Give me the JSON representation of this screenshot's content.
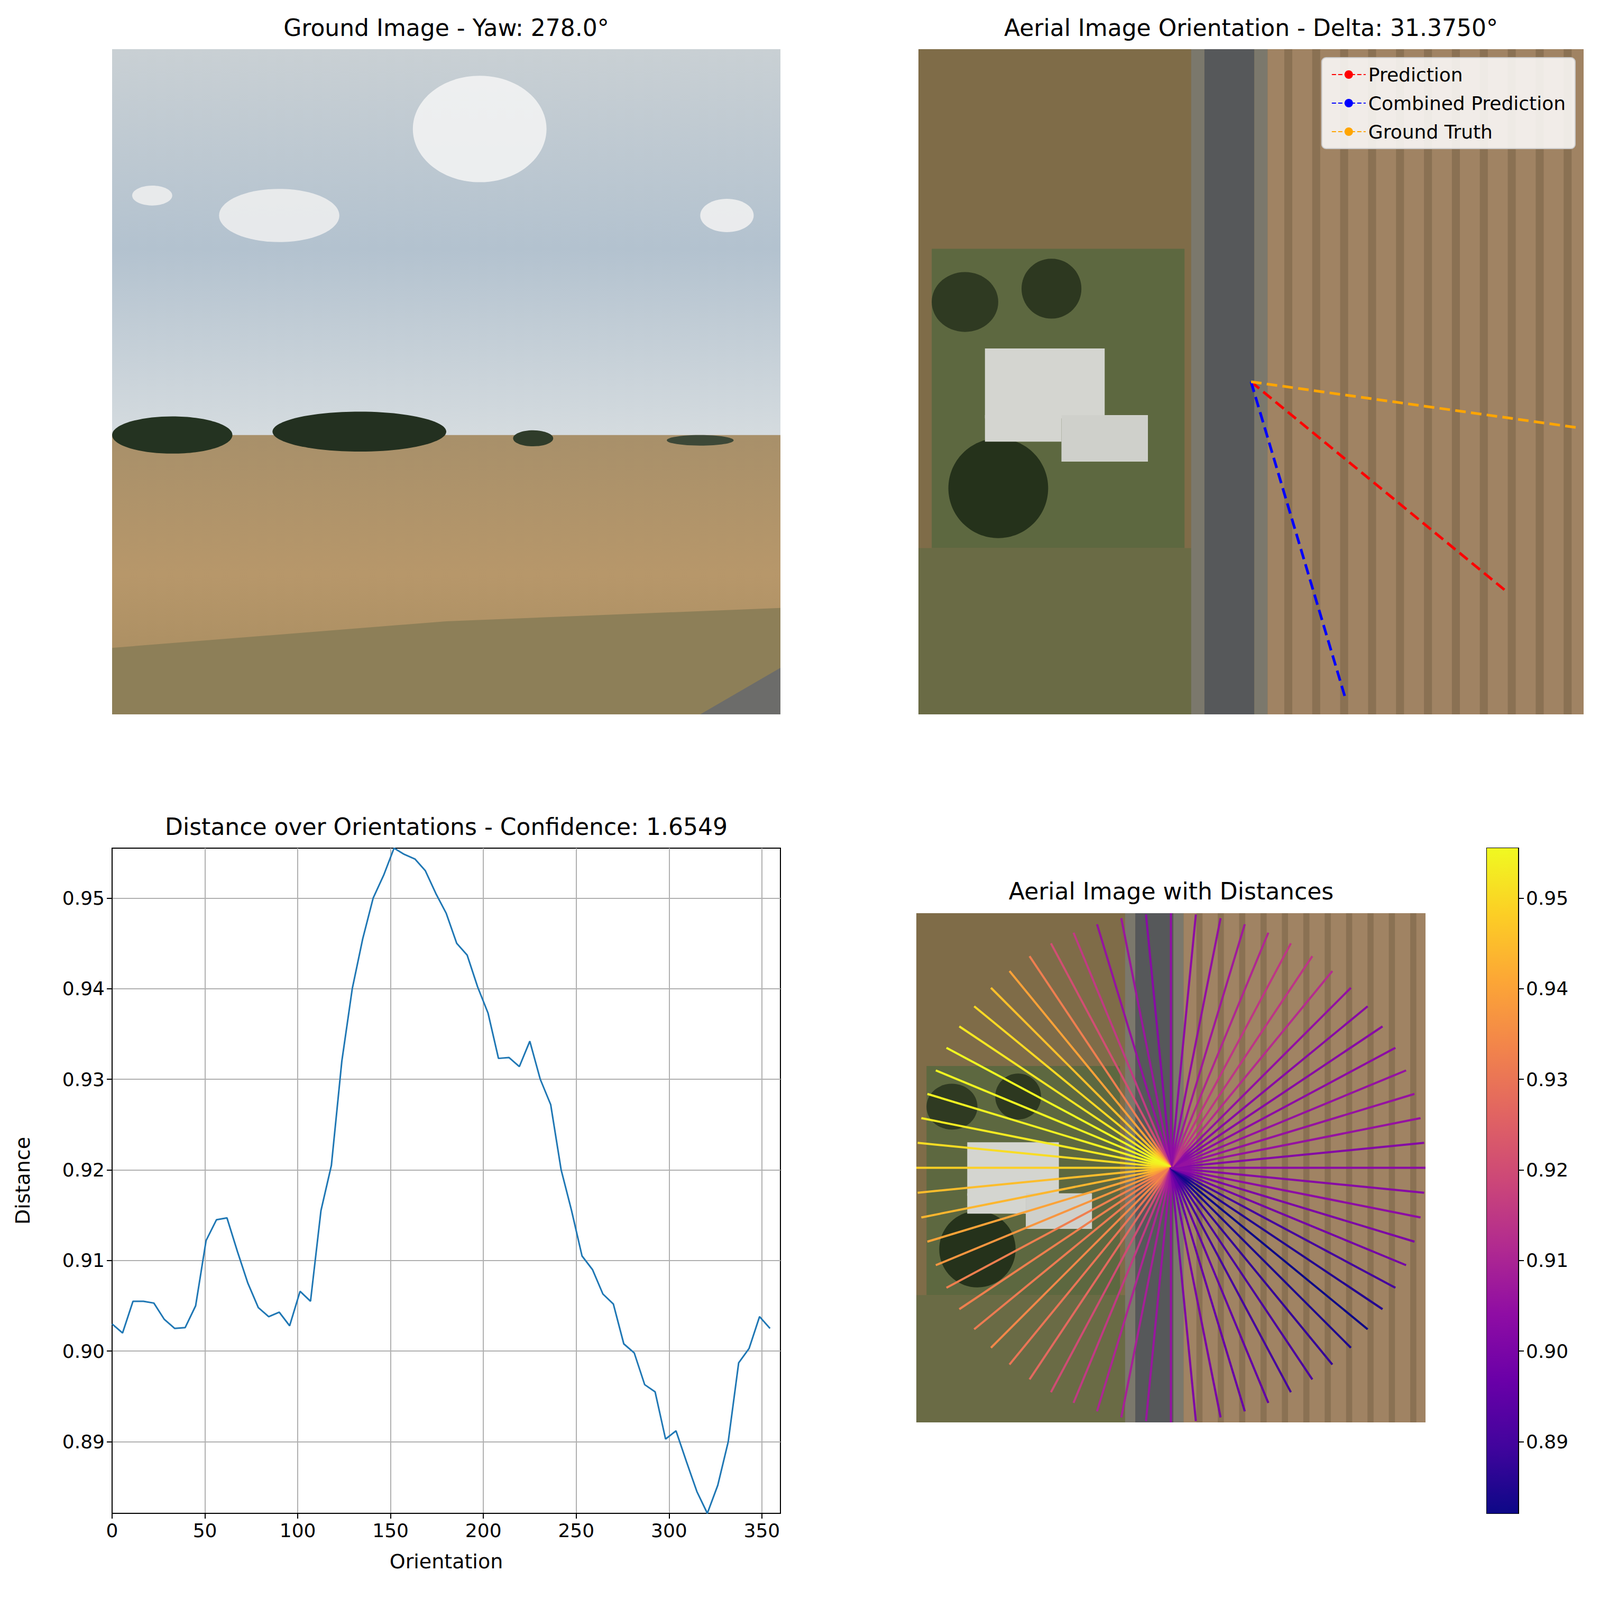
{
  "chart_data": [
    {
      "type": "image",
      "title": "Ground Image - Yaw: 278.0°"
    },
    {
      "type": "polar_line",
      "title": "Aerial Image Orientation - Delta: 31.3750°",
      "legend": "upper right",
      "tick_labels": false,
      "rlim": [
        0,
        1
      ],
      "thetalim": [
        0,
        360
      ],
      "series": [
        {
          "name": "Prediction",
          "color": "#ff0000",
          "line_style": "dashed",
          "r": [
            0,
            1
          ],
          "theta": 320.625
        },
        {
          "name": "Combined Prediction",
          "color": "#0000ff",
          "line_style": "dashed",
          "r": [
            0,
            1
          ],
          "theta": 286.6
        },
        {
          "name": "Ground Truth",
          "color": "#ffa500",
          "line_style": "dashed",
          "r": [
            0,
            1
          ],
          "theta": 352.0
        }
      ]
    },
    {
      "type": "line",
      "title": "Distance over Orientations - Confidence: 1.6549",
      "x_label": "Orientation",
      "y_label": "Distance",
      "color": "#1f77b4",
      "grid": true,
      "x": [
        0,
        5.625,
        11.25,
        16.875,
        22.5,
        28.125,
        33.75,
        39.375,
        45,
        50.625,
        56.25,
        61.875,
        67.5,
        73.125,
        78.75,
        84.375,
        90,
        95.625,
        101.25,
        106.875,
        112.5,
        118.125,
        123.75,
        129.375,
        135,
        140.625,
        146.25,
        151.875,
        157.5,
        163.125,
        168.75,
        174.375,
        180,
        185.625,
        191.25,
        196.875,
        202.5,
        208.125,
        213.75,
        219.375,
        225,
        230.625,
        236.25,
        241.875,
        247.5,
        253.125,
        258.75,
        264.375,
        270,
        275.625,
        281.25,
        286.875,
        292.5,
        298.125,
        303.75,
        309.375,
        315,
        320.625,
        326.25,
        331.875,
        337.5,
        343.125,
        348.75,
        354.375
      ],
      "values": [
        0.903,
        0.902,
        0.9055,
        0.9055,
        0.9053,
        0.9035,
        0.9025,
        0.9026,
        0.905,
        0.9122,
        0.9145,
        0.9147,
        0.911,
        0.9075,
        0.9048,
        0.9038,
        0.9043,
        0.9028,
        0.9066,
        0.9055,
        0.9155,
        0.9205,
        0.932,
        0.94,
        0.9455,
        0.95,
        0.9525,
        0.9555,
        0.9548,
        0.9543,
        0.953,
        0.9505,
        0.9483,
        0.945,
        0.9437,
        0.9402,
        0.9373,
        0.9323,
        0.9324,
        0.9314,
        0.9342,
        0.93,
        0.9272,
        0.92,
        0.9155,
        0.9105,
        0.909,
        0.9063,
        0.9052,
        0.9008,
        0.8998,
        0.8963,
        0.8955,
        0.8903,
        0.8912,
        0.8878,
        0.8845,
        0.8821,
        0.8852,
        0.89,
        0.8987,
        0.9003,
        0.9038,
        0.9025
      ],
      "xlim": [
        0,
        360
      ],
      "ylim": [
        0.8821,
        0.9555
      ],
      "xticks": [
        0,
        50,
        100,
        150,
        200,
        250,
        300,
        350
      ],
      "yticks": [
        0.89,
        {
          "value": 0.9,
          "label": "0.90"
        },
        0.91,
        0.92,
        0.93,
        0.94,
        0.95
      ]
    },
    {
      "type": "polar_rays",
      "title": "Aerial Image with Distances",
      "tick_labels": false,
      "rlim": [
        0,
        1
      ],
      "thetalim": [
        0,
        360
      ],
      "r": [
        0,
        1
      ],
      "theta": [
        0,
        5.625,
        11.25,
        16.875,
        22.5,
        28.125,
        33.75,
        39.375,
        45,
        50.625,
        56.25,
        61.875,
        67.5,
        73.125,
        78.75,
        84.375,
        90,
        95.625,
        101.25,
        106.875,
        112.5,
        118.125,
        123.75,
        129.375,
        135,
        140.625,
        146.25,
        151.875,
        157.5,
        163.125,
        168.75,
        174.375,
        180,
        185.625,
        191.25,
        196.875,
        202.5,
        208.125,
        213.75,
        219.375,
        225,
        230.625,
        236.25,
        241.875,
        247.5,
        253.125,
        258.75,
        264.375,
        270,
        275.625,
        281.25,
        286.875,
        292.5,
        298.125,
        303.75,
        309.375,
        315,
        320.625,
        326.25,
        331.875,
        337.5,
        343.125,
        348.75,
        354.375
      ],
      "values": [
        0.903,
        0.902,
        0.9055,
        0.9055,
        0.9053,
        0.9035,
        0.9025,
        0.9026,
        0.905,
        0.9122,
        0.9145,
        0.9147,
        0.911,
        0.9075,
        0.9048,
        0.9038,
        0.9043,
        0.9028,
        0.9066,
        0.9055,
        0.9155,
        0.9205,
        0.932,
        0.94,
        0.9455,
        0.95,
        0.9525,
        0.9555,
        0.9548,
        0.9543,
        0.953,
        0.9505,
        0.9483,
        0.945,
        0.9437,
        0.9402,
        0.9373,
        0.9323,
        0.9324,
        0.9314,
        0.9342,
        0.93,
        0.9272,
        0.92,
        0.9155,
        0.9105,
        0.909,
        0.9063,
        0.9052,
        0.9008,
        0.8998,
        0.8963,
        0.8955,
        0.8903,
        0.8912,
        0.8878,
        0.8845,
        0.8821,
        0.8852,
        0.89,
        0.8987,
        0.9003,
        0.9038,
        0.9025
      ],
      "colorbar": {
        "range": [
          0.8821,
          0.9555
        ],
        "ticks": [
          0.89,
          {
            "value": 0.9,
            "label": "0.90"
          },
          0.91,
          0.92,
          0.93,
          0.94,
          0.95
        ]
      }
    }
  ]
}
